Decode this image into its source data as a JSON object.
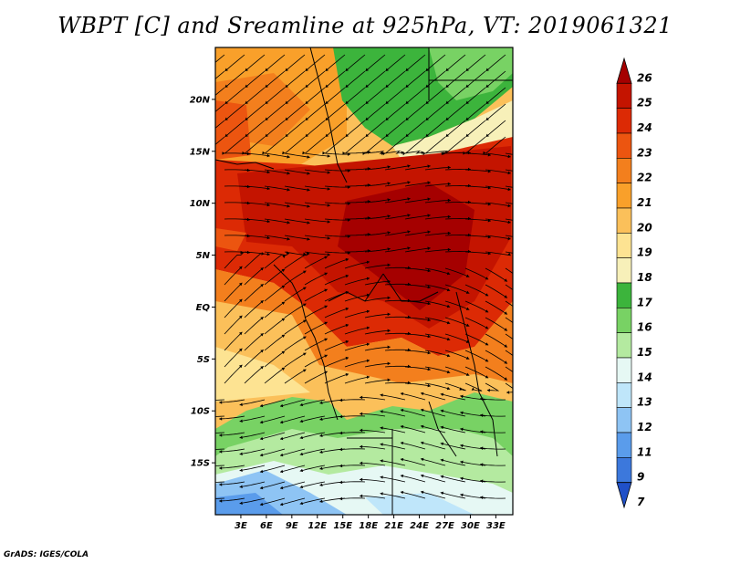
{
  "title": "WBPT [C] and Sreamline at 925hPa, VT: 2019061321",
  "footer": "GrADS: IGES/COLA",
  "map": {
    "lat_labels": [
      "20N",
      "15N",
      "10N",
      "5N",
      "EQ",
      "5S",
      "10S",
      "15S"
    ],
    "lat_values": [
      20,
      15,
      10,
      5,
      0,
      -5,
      -10,
      -15
    ],
    "lon_labels": [
      "3E",
      "6E",
      "9E",
      "12E",
      "15E",
      "18E",
      "21E",
      "24E",
      "27E",
      "30E",
      "33E"
    ],
    "lon_values": [
      3,
      6,
      9,
      12,
      15,
      18,
      21,
      24,
      27,
      30,
      33
    ],
    "lon_range": [
      0,
      35
    ],
    "lat_range": [
      -20,
      25
    ]
  },
  "colorbar": {
    "labels": [
      "26",
      "25",
      "24",
      "23",
      "22",
      "21",
      "20",
      "19",
      "18",
      "17",
      "16",
      "15",
      "14",
      "13",
      "12",
      "11",
      "9",
      "7"
    ],
    "colors": [
      "#a50000",
      "#c41400",
      "#dc2a05",
      "#ec5510",
      "#f37f1d",
      "#f9a02a",
      "#fbc05a",
      "#fde392",
      "#f7f0b9",
      "#3cb43c",
      "#78d264",
      "#b4eaa0",
      "#e6f8f4",
      "#bfe6fa",
      "#8ec4f4",
      "#5a9ceb",
      "#3c78dc",
      "#2050c8"
    ]
  },
  "colors": {
    "hot": "#c41400",
    "warm": "#f37f1d",
    "mild": "#fde392",
    "green": "#3cb43c",
    "cool": "#8ec4f4"
  }
}
